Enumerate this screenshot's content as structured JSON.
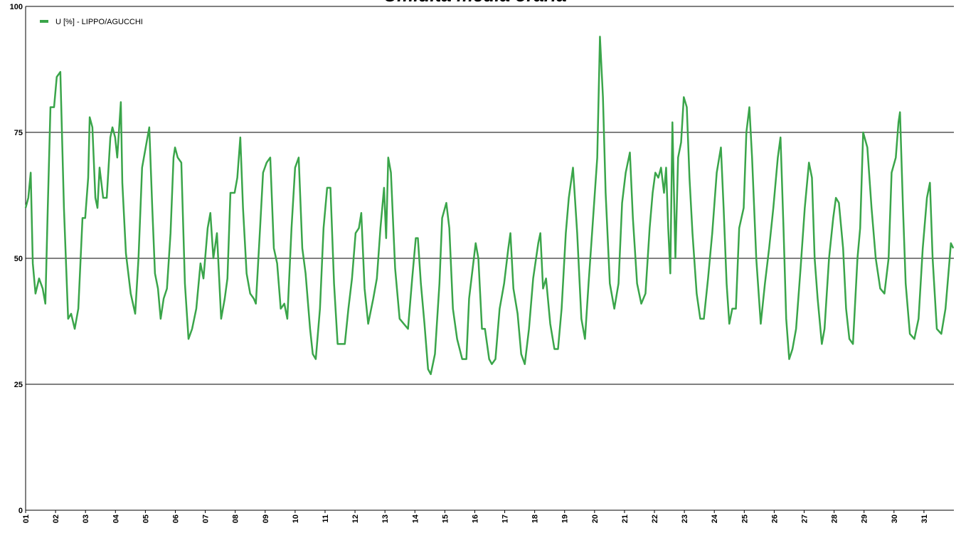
{
  "chart_data": {
    "type": "line",
    "title": "Umidità media oraria",
    "x": [
      1.0,
      1.09,
      1.17,
      1.24,
      1.33,
      1.45,
      1.57,
      1.66,
      1.74,
      1.83,
      1.95,
      2.04,
      2.16,
      2.28,
      2.42,
      2.52,
      2.64,
      2.76,
      2.9,
      2.99,
      3.09,
      3.14,
      3.23,
      3.33,
      3.4,
      3.47,
      3.59,
      3.71,
      3.83,
      3.9,
      3.99,
      4.06,
      4.18,
      4.23,
      4.35,
      4.51,
      4.66,
      4.77,
      4.89,
      5.01,
      5.13,
      5.23,
      5.32,
      5.42,
      5.51,
      5.61,
      5.72,
      5.84,
      5.94,
      5.99,
      6.08,
      6.2,
      6.32,
      6.44,
      6.56,
      6.7,
      6.84,
      6.94,
      7.08,
      7.17,
      7.27,
      7.39,
      7.53,
      7.65,
      7.74,
      7.84,
      7.98,
      8.07,
      8.17,
      8.26,
      8.38,
      8.5,
      8.62,
      8.69,
      8.83,
      8.93,
      9.05,
      9.17,
      9.29,
      9.4,
      9.52,
      9.64,
      9.74,
      9.88,
      10.0,
      10.12,
      10.24,
      10.35,
      10.5,
      10.59,
      10.69,
      10.83,
      10.95,
      11.07,
      11.18,
      11.3,
      11.42,
      11.54,
      11.66,
      11.78,
      11.9,
      12.02,
      12.13,
      12.21,
      12.32,
      12.44,
      12.61,
      12.73,
      12.85,
      12.97,
      13.04,
      13.11,
      13.2,
      13.34,
      13.49,
      13.63,
      13.77,
      13.91,
      14.03,
      14.1,
      14.2,
      14.32,
      14.44,
      14.53,
      14.67,
      14.82,
      14.91,
      15.05,
      15.15,
      15.27,
      15.41,
      15.58,
      15.72,
      15.81,
      15.93,
      16.03,
      16.12,
      16.24,
      16.34,
      16.48,
      16.57,
      16.69,
      16.83,
      16.98,
      17.12,
      17.19,
      17.29,
      17.43,
      17.55,
      17.67,
      17.81,
      17.95,
      18.12,
      18.19,
      18.28,
      18.38,
      18.52,
      18.66,
      18.78,
      18.9,
      19.04,
      19.14,
      19.28,
      19.42,
      19.56,
      19.68,
      19.8,
      19.94,
      20.09,
      20.18,
      20.28,
      20.37,
      20.51,
      20.66,
      20.8,
      20.92,
      21.04,
      21.18,
      21.28,
      21.42,
      21.56,
      21.7,
      21.84,
      21.94,
      22.03,
      22.13,
      22.22,
      22.32,
      22.39,
      22.46,
      22.53,
      22.6,
      22.7,
      22.79,
      22.89,
      22.98,
      23.08,
      23.17,
      23.27,
      23.41,
      23.53,
      23.65,
      23.79,
      23.93,
      24.08,
      24.22,
      24.31,
      24.41,
      24.5,
      24.6,
      24.72,
      24.83,
      24.98,
      25.07,
      25.17,
      25.26,
      25.4,
      25.55,
      25.69,
      25.83,
      25.97,
      26.12,
      26.21,
      26.31,
      26.4,
      26.5,
      26.61,
      26.73,
      26.88,
      27.02,
      27.16,
      27.26,
      27.35,
      27.45,
      27.59,
      27.68,
      27.83,
      27.97,
      28.06,
      28.16,
      28.3,
      28.4,
      28.51,
      28.63,
      28.78,
      28.87,
      28.97,
      29.11,
      29.25,
      29.39,
      29.54,
      29.68,
      29.82,
      29.92,
      30.06,
      30.15,
      30.2,
      30.3,
      30.39,
      30.53,
      30.68,
      30.82,
      30.96,
      31.1,
      31.2,
      31.29,
      31.43,
      31.58,
      31.72,
      31.86,
      31.9,
      31.98
    ],
    "series": [
      {
        "name": "U [%] - LIPPO/AGUCCHI",
        "color": "#3aa54a",
        "values": [
          60,
          62,
          67,
          49,
          43,
          46,
          44,
          41,
          60,
          80,
          80,
          86,
          87,
          60,
          38,
          39,
          36,
          40,
          58,
          58,
          66,
          78,
          76,
          62,
          60,
          68,
          62,
          62,
          74,
          76,
          74,
          70,
          81,
          65,
          51,
          43,
          39,
          50,
          68,
          72,
          76,
          60,
          47,
          44,
          38,
          42,
          44,
          55,
          70,
          72,
          70,
          69,
          45,
          34,
          36,
          40,
          49,
          46,
          56,
          59,
          50,
          55,
          38,
          42,
          46,
          63,
          63,
          66,
          74,
          60,
          47,
          43,
          42,
          41,
          56,
          67,
          69,
          70,
          52,
          49,
          40,
          41,
          38,
          56,
          68,
          70,
          52,
          47,
          36,
          31,
          30,
          40,
          56,
          64,
          64,
          45,
          33,
          33,
          33,
          40,
          46,
          55,
          56,
          59,
          44,
          37,
          42,
          46,
          56,
          64,
          54,
          70,
          67,
          48,
          38,
          37,
          36,
          46,
          54,
          54,
          45,
          37,
          28,
          27,
          31,
          45,
          58,
          61,
          56,
          40,
          34,
          30,
          30,
          42,
          48,
          53,
          50,
          36,
          36,
          30,
          29,
          30,
          40,
          45,
          52,
          55,
          44,
          39,
          31,
          29,
          36,
          46,
          53,
          55,
          44,
          46,
          37,
          32,
          32,
          40,
          55,
          62,
          68,
          55,
          38,
          34,
          45,
          57,
          70,
          94,
          82,
          63,
          45,
          40,
          45,
          61,
          67,
          71,
          58,
          45,
          41,
          43,
          56,
          63,
          67,
          66,
          68,
          63,
          68,
          56,
          47,
          77,
          50,
          70,
          73,
          82,
          80,
          66,
          55,
          43,
          38,
          38,
          46,
          55,
          67,
          72,
          60,
          45,
          37,
          40,
          40,
          56,
          60,
          75,
          80,
          70,
          50,
          37,
          45,
          52,
          60,
          70,
          74,
          56,
          38,
          30,
          32,
          36,
          48,
          60,
          69,
          66,
          50,
          42,
          33,
          36,
          50,
          58,
          62,
          61,
          52,
          40,
          34,
          33,
          50,
          56,
          75,
          72,
          60,
          50,
          44,
          43,
          50,
          67,
          70,
          77,
          79,
          60,
          45,
          35,
          34,
          38,
          52,
          62,
          65,
          50,
          36,
          35,
          40,
          50,
          53,
          52
        ]
      }
    ],
    "xlim": [
      1,
      32
    ],
    "xticks": [
      {
        "value": 1,
        "label": "01"
      },
      {
        "value": 2,
        "label": "02"
      },
      {
        "value": 3,
        "label": "03"
      },
      {
        "value": 4,
        "label": "04"
      },
      {
        "value": 5,
        "label": "05"
      },
      {
        "value": 6,
        "label": "06"
      },
      {
        "value": 7,
        "label": "07"
      },
      {
        "value": 8,
        "label": "08"
      },
      {
        "value": 9,
        "label": "09"
      },
      10,
      11,
      12,
      13,
      14,
      15,
      16,
      17,
      18,
      19,
      20,
      21,
      22,
      23,
      24,
      25,
      26,
      27,
      28,
      29,
      30,
      31
    ],
    "ylim": [
      0,
      100
    ],
    "yticks": [
      0,
      25,
      50,
      75,
      100
    ],
    "grid": true,
    "legend": "top-left"
  }
}
